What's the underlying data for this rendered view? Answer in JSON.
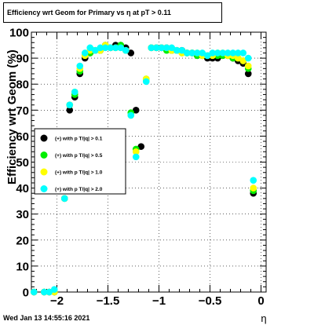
{
  "chart_data": {
    "type": "scatter",
    "title": "Efficiency wrt Geom for Primary vs   η at pT > 0.11",
    "xlabel": "η",
    "ylabel": "Efficiency wrt Geom (%)",
    "xlim": [
      -2.25,
      0.05
    ],
    "ylim": [
      0,
      100
    ],
    "xticks": [
      -2,
      -1.5,
      -1,
      -0.5,
      0
    ],
    "xtick_labels": [
      "−2",
      "−1.5",
      "−1",
      "−0.5",
      "0"
    ],
    "yticks": [
      0,
      10,
      20,
      30,
      40,
      50,
      60,
      70,
      80,
      90,
      100
    ],
    "yticks_labels": [
      "0",
      "10",
      "20",
      "30",
      "40",
      "50",
      "60",
      "70",
      "80",
      "90",
      "100"
    ],
    "grid": true,
    "legend_position": "middle-left",
    "x": [
      -2.225,
      -2.125,
      -2.075,
      -2.025,
      -1.925,
      -1.875,
      -1.825,
      -1.775,
      -1.725,
      -1.675,
      -1.625,
      -1.575,
      -1.525,
      -1.475,
      -1.425,
      -1.375,
      -1.325,
      -1.275,
      -1.225,
      -1.175,
      -1.125,
      -1.075,
      -1.025,
      -0.975,
      -0.925,
      -0.875,
      -0.825,
      -0.775,
      -0.725,
      -0.675,
      -0.625,
      -0.575,
      -0.525,
      -0.475,
      -0.425,
      -0.375,
      -0.325,
      -0.275,
      -0.225,
      -0.175,
      -0.125,
      -0.075,
      -0.025
    ],
    "series": [
      {
        "name": "(+) with p T/|q| > 0.1",
        "color": "#000000",
        "values": [
          0,
          0,
          0,
          0,
          36,
          70,
          75,
          84,
          90,
          92,
          93,
          93,
          95,
          94,
          95,
          95,
          94,
          92,
          70,
          56,
          null,
          94,
          94,
          94,
          94,
          93,
          93,
          93,
          92,
          92,
          91,
          91,
          90,
          90,
          90,
          91,
          91,
          90,
          89,
          88,
          84,
          38,
          null
        ]
      },
      {
        "name": "(+) with p T/|q| > 0.5",
        "color": "#00ee00",
        "values": [
          0,
          0,
          0,
          0,
          36,
          72,
          76,
          85,
          91,
          92,
          93,
          93,
          95,
          94,
          94,
          95,
          93,
          69,
          55,
          null,
          82,
          94,
          94,
          94,
          93,
          93,
          93,
          92,
          92,
          92,
          91,
          91,
          91,
          91,
          91,
          91,
          91,
          90,
          90,
          89,
          86,
          39,
          null
        ]
      },
      {
        "name": "(+) with p T/|q| > 1.0",
        "color": "#ffff00",
        "values": [
          0,
          0,
          0,
          0,
          36,
          72,
          77,
          86,
          91,
          93,
          93,
          93,
          95,
          94,
          94,
          94,
          93,
          68,
          54,
          null,
          82,
          94,
          94,
          94,
          94,
          93,
          93,
          92,
          92,
          92,
          92,
          91,
          91,
          91,
          92,
          92,
          91,
          91,
          90,
          89,
          87,
          40,
          null
        ]
      },
      {
        "name": "(+) with p T/|q| > 2.0",
        "color": "#00ffff",
        "values": [
          0,
          0,
          0,
          1,
          36,
          72,
          77,
          87,
          92,
          94,
          93,
          94,
          94,
          94,
          94,
          94,
          93,
          68,
          52,
          null,
          81,
          94,
          94,
          94,
          94,
          94,
          93,
          93,
          92,
          92,
          92,
          92,
          91,
          92,
          92,
          92,
          92,
          92,
          92,
          92,
          90,
          43,
          null
        ]
      }
    ],
    "timestamp": "Wed Jan 13 14:55:16 2021"
  }
}
